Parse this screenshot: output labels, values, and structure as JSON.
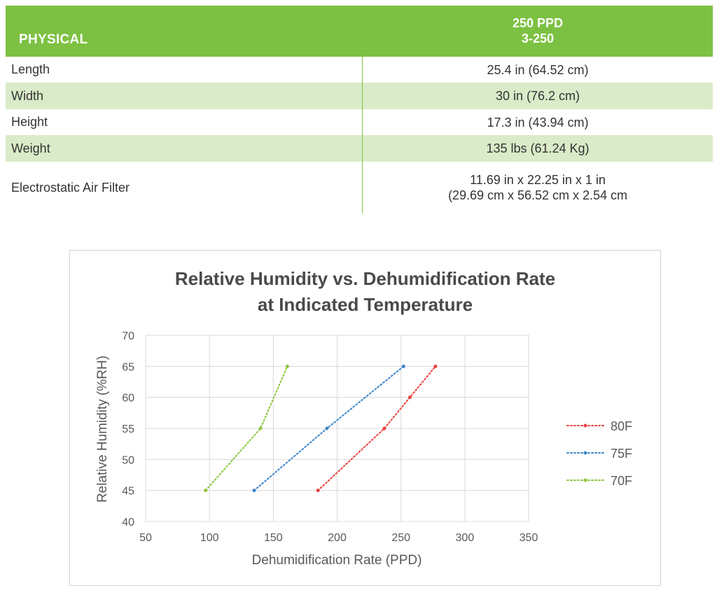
{
  "table": {
    "header": {
      "left": "PHYSICAL",
      "right_line1": "250 PPD",
      "right_line2": "3-250"
    },
    "rows": [
      {
        "label": "Length",
        "value": "25.4 in (64.52 cm)"
      },
      {
        "label": "Width",
        "value": "30 in (76.2 cm)"
      },
      {
        "label": "Height",
        "value": "17.3 in (43.94 cm)"
      },
      {
        "label": "Weight",
        "value": "135 lbs (61.24 Kg)"
      },
      {
        "label": "Electrostatic Air Filter",
        "value": "11.69 in x 22.25 in x 1 in",
        "value2": "(29.69 cm x 56.52 cm x 2.54 cm"
      }
    ],
    "colors": {
      "header": "#7dc142",
      "shade": "#d9ebc8"
    }
  },
  "chart_data": {
    "type": "line",
    "title_line1": "Relative Humidity vs. Dehumidification Rate",
    "title_line2": "at Indicated Temperature",
    "xlabel": "Dehumidification Rate (PPD)",
    "ylabel": "Relative Humidity (%RH)",
    "xlim": [
      50,
      350
    ],
    "ylim": [
      40,
      70
    ],
    "xticks": [
      50,
      100,
      150,
      200,
      250,
      300,
      350
    ],
    "yticks": [
      40,
      45,
      50,
      55,
      60,
      65,
      70
    ],
    "grid": true,
    "legend_position": "right",
    "series": [
      {
        "name": "80F",
        "color": "#e8413c",
        "points": [
          [
            185,
            45
          ],
          [
            237,
            55
          ],
          [
            257,
            60
          ],
          [
            277,
            65
          ]
        ]
      },
      {
        "name": "75F",
        "color": "#3b85c8",
        "points": [
          [
            135,
            45
          ],
          [
            192,
            55
          ],
          [
            252,
            65
          ]
        ]
      },
      {
        "name": "70F",
        "color": "#8cc63e",
        "points": [
          [
            97,
            45
          ],
          [
            140,
            55
          ],
          [
            161,
            65
          ]
        ]
      }
    ]
  }
}
